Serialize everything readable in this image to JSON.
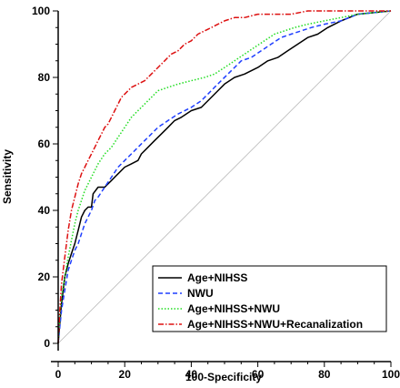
{
  "chart_data": {
    "type": "line",
    "xlabel": "100-Specificity",
    "ylabel": "Sensitivity",
    "xlim": [
      0,
      100
    ],
    "ylim": [
      0,
      100
    ],
    "xticks": [
      "0",
      "20",
      "40",
      "60",
      "80",
      "100"
    ],
    "yticks": [
      "0",
      "20",
      "40",
      "60",
      "80",
      "100"
    ],
    "legend_position": "bottom-right",
    "diagonal_reference_line": true,
    "series": [
      {
        "name": "Age+NIHSS",
        "color": "#000000",
        "style": "solid",
        "points": [
          [
            0,
            0
          ],
          [
            0.5,
            6
          ],
          [
            1,
            12
          ],
          [
            1.5,
            16
          ],
          [
            2,
            20
          ],
          [
            3,
            24
          ],
          [
            4,
            27
          ],
          [
            5,
            30
          ],
          [
            6,
            34
          ],
          [
            7,
            38
          ],
          [
            8,
            40
          ],
          [
            9,
            41
          ],
          [
            10,
            41
          ],
          [
            10.5,
            45
          ],
          [
            12,
            47
          ],
          [
            14,
            47
          ],
          [
            16,
            49
          ],
          [
            18,
            51
          ],
          [
            20,
            53
          ],
          [
            22,
            54
          ],
          [
            24,
            55
          ],
          [
            25,
            57
          ],
          [
            27,
            59
          ],
          [
            29,
            61
          ],
          [
            31,
            63
          ],
          [
            33,
            65
          ],
          [
            35,
            67
          ],
          [
            37,
            68
          ],
          [
            40,
            70
          ],
          [
            43,
            71
          ],
          [
            45,
            73
          ],
          [
            48,
            76
          ],
          [
            50,
            78
          ],
          [
            53,
            80
          ],
          [
            56,
            81
          ],
          [
            60,
            83
          ],
          [
            63,
            85
          ],
          [
            66,
            86
          ],
          [
            69,
            88
          ],
          [
            72,
            90
          ],
          [
            75,
            92
          ],
          [
            78,
            93
          ],
          [
            81,
            95
          ],
          [
            85,
            97
          ],
          [
            90,
            99
          ],
          [
            100,
            100
          ]
        ]
      },
      {
        "name": "NWU",
        "color": "#1f3fff",
        "style": "dashed",
        "points": [
          [
            0,
            0
          ],
          [
            0.5,
            5
          ],
          [
            1,
            10
          ],
          [
            2,
            16
          ],
          [
            3,
            22
          ],
          [
            4,
            25
          ],
          [
            5,
            28
          ],
          [
            6,
            30
          ],
          [
            7,
            33
          ],
          [
            8,
            36
          ],
          [
            9,
            38
          ],
          [
            10,
            40
          ],
          [
            11,
            43
          ],
          [
            12,
            44
          ],
          [
            14,
            47
          ],
          [
            16,
            50
          ],
          [
            18,
            53
          ],
          [
            20,
            55
          ],
          [
            22,
            57
          ],
          [
            24,
            59
          ],
          [
            26,
            61
          ],
          [
            28,
            63
          ],
          [
            30,
            65
          ],
          [
            33,
            67
          ],
          [
            36,
            69
          ],
          [
            40,
            71
          ],
          [
            43,
            73
          ],
          [
            45,
            75
          ],
          [
            47,
            77
          ],
          [
            49,
            79
          ],
          [
            51,
            81
          ],
          [
            53,
            83
          ],
          [
            55,
            85
          ],
          [
            58,
            86
          ],
          [
            61,
            88
          ],
          [
            64,
            90
          ],
          [
            67,
            92
          ],
          [
            70,
            93
          ],
          [
            73,
            94
          ],
          [
            76,
            95
          ],
          [
            80,
            96
          ],
          [
            85,
            97
          ],
          [
            90,
            99
          ],
          [
            100,
            100
          ]
        ]
      },
      {
        "name": "Age+NIHSS+NWU",
        "color": "#22dd22",
        "style": "dotted",
        "points": [
          [
            0,
            0
          ],
          [
            0.5,
            8
          ],
          [
            1,
            14
          ],
          [
            2,
            20
          ],
          [
            3,
            26
          ],
          [
            4,
            31
          ],
          [
            5,
            36
          ],
          [
            6,
            40
          ],
          [
            7,
            43
          ],
          [
            8,
            46
          ],
          [
            10,
            50
          ],
          [
            12,
            54
          ],
          [
            14,
            57
          ],
          [
            16,
            59
          ],
          [
            18,
            62
          ],
          [
            20,
            65
          ],
          [
            22,
            68
          ],
          [
            24,
            70
          ],
          [
            26,
            72
          ],
          [
            28,
            74
          ],
          [
            30,
            76
          ],
          [
            33,
            77
          ],
          [
            36,
            78
          ],
          [
            40,
            79
          ],
          [
            44,
            80
          ],
          [
            47,
            81
          ],
          [
            50,
            83
          ],
          [
            53,
            85
          ],
          [
            56,
            87
          ],
          [
            59,
            89
          ],
          [
            62,
            91
          ],
          [
            65,
            93
          ],
          [
            68,
            94
          ],
          [
            71,
            95
          ],
          [
            75,
            96
          ],
          [
            80,
            97
          ],
          [
            85,
            98
          ],
          [
            90,
            99
          ],
          [
            100,
            100
          ]
        ]
      },
      {
        "name": "Age+NIHSS+NWU+Recanalization",
        "color": "#dd1111",
        "style": "dashdot",
        "points": [
          [
            0,
            0
          ],
          [
            0.5,
            10
          ],
          [
            1,
            18
          ],
          [
            2,
            26
          ],
          [
            3,
            34
          ],
          [
            4,
            40
          ],
          [
            5,
            44
          ],
          [
            6,
            48
          ],
          [
            7,
            51
          ],
          [
            8,
            53
          ],
          [
            9,
            55
          ],
          [
            10,
            57
          ],
          [
            11,
            59
          ],
          [
            12,
            61
          ],
          [
            13,
            63
          ],
          [
            14,
            65
          ],
          [
            15,
            66
          ],
          [
            16,
            68
          ],
          [
            17,
            70
          ],
          [
            18,
            72
          ],
          [
            19,
            74
          ],
          [
            20,
            75
          ],
          [
            22,
            77
          ],
          [
            24,
            78
          ],
          [
            26,
            79
          ],
          [
            28,
            81
          ],
          [
            30,
            83
          ],
          [
            32,
            85
          ],
          [
            34,
            87
          ],
          [
            36,
            88
          ],
          [
            38,
            90
          ],
          [
            40,
            91
          ],
          [
            42,
            93
          ],
          [
            44,
            94
          ],
          [
            46,
            95
          ],
          [
            48,
            96
          ],
          [
            50,
            97
          ],
          [
            53,
            98
          ],
          [
            56,
            98
          ],
          [
            60,
            99
          ],
          [
            65,
            99
          ],
          [
            70,
            99
          ],
          [
            75,
            100
          ],
          [
            85,
            100
          ],
          [
            100,
            100
          ]
        ]
      }
    ]
  }
}
